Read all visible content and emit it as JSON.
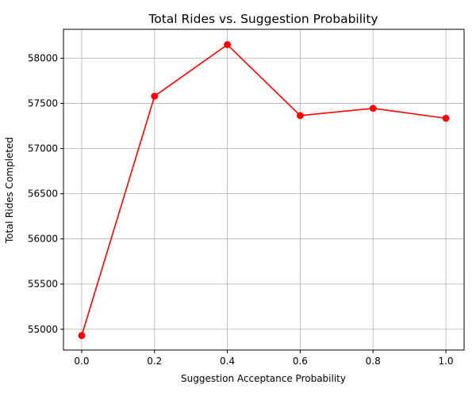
{
  "chart_data": {
    "type": "line",
    "title": "Total Rides vs. Suggestion Probability",
    "xlabel": "Suggestion Acceptance Probability",
    "ylabel": "Total Rides Completed",
    "x": [
      0.0,
      0.2,
      0.4,
      0.6,
      0.8,
      1.0
    ],
    "series": [
      {
        "values": [
          54930,
          57580,
          58150,
          57365,
          57445,
          57335
        ],
        "color": "#ff0000",
        "marker": "circle"
      }
    ],
    "xlim": [
      -0.05,
      1.05
    ],
    "ylim": [
      54770,
      58320
    ],
    "xticks": [
      0.0,
      0.2,
      0.4,
      0.6,
      0.8,
      1.0
    ],
    "xtick_labels": [
      "0.0",
      "0.2",
      "0.4",
      "0.6",
      "0.8",
      "1.0"
    ],
    "yticks": [
      55000,
      55500,
      56000,
      56500,
      57000,
      57500,
      58000
    ],
    "ytick_labels": [
      "55000",
      "55500",
      "56000",
      "56500",
      "57000",
      "57500",
      "58000"
    ],
    "grid": true,
    "grid_color": "#b0b0b0",
    "axes_color": "#000000"
  }
}
